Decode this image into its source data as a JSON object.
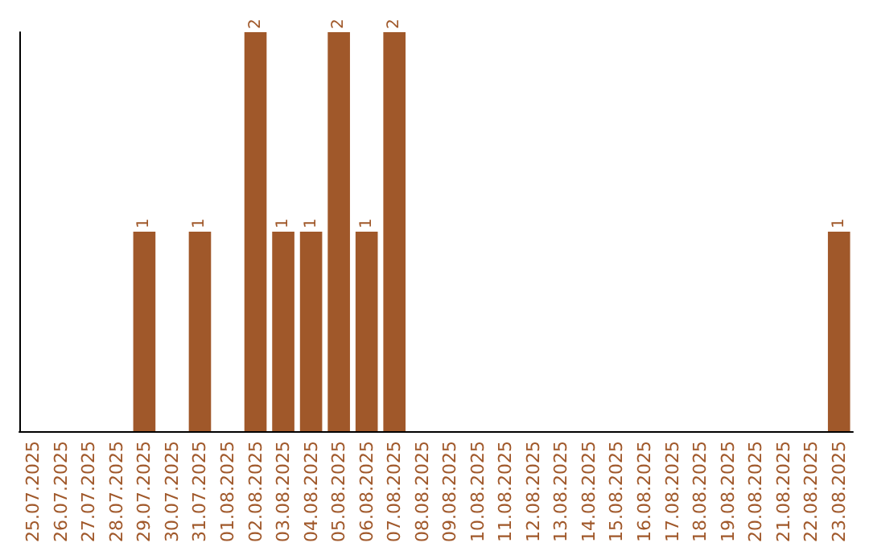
{
  "chart_data": {
    "type": "bar",
    "categories": [
      "25.07.2025",
      "26.07.2025",
      "27.07.2025",
      "28.07.2025",
      "29.07.2025",
      "30.07.2025",
      "31.07.2025",
      "01.08.2025",
      "02.08.2025",
      "03.08.2025",
      "04.08.2025",
      "05.08.2025",
      "06.08.2025",
      "07.08.2025",
      "08.08.2025",
      "09.08.2025",
      "10.08.2025",
      "11.08.2025",
      "12.08.2025",
      "13.08.2025",
      "14.08.2025",
      "15.08.2025",
      "16.08.2025",
      "17.08.2025",
      "18.08.2025",
      "19.08.2025",
      "20.08.2025",
      "21.08.2025",
      "22.08.2025",
      "23.08.2025"
    ],
    "values": [
      0,
      0,
      0,
      0,
      1,
      0,
      1,
      0,
      2,
      1,
      1,
      2,
      1,
      2,
      0,
      0,
      0,
      0,
      0,
      0,
      0,
      0,
      0,
      0,
      0,
      0,
      0,
      0,
      0,
      1
    ],
    "value_labels": [
      null,
      null,
      null,
      null,
      "1",
      null,
      "1",
      null,
      "2",
      "1",
      "1",
      "2",
      "1",
      "2",
      null,
      null,
      null,
      null,
      null,
      null,
      null,
      null,
      null,
      null,
      null,
      null,
      null,
      null,
      null,
      "1"
    ],
    "color": "#a0582a",
    "ylim": [
      0,
      2
    ],
    "tick_labels": "x",
    "grid": false
  }
}
